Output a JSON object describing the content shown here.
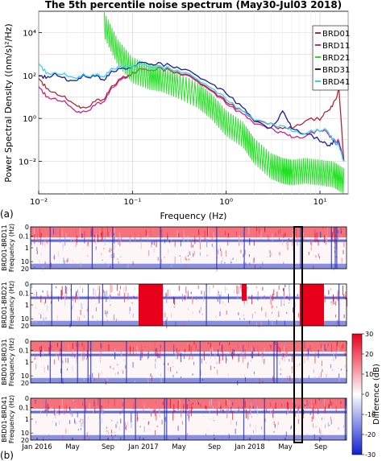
{
  "panel_a": {
    "title": "The 5th percentile noise spectrum (May30-Jul03 2018)",
    "xlabel": "Frequency (Hz)",
    "ylabel": "Power Spectral Density ((nm/s)²/Hz)",
    "panel_letter": "(a)",
    "x_tick_labels": [
      "10⁻²",
      "10⁻¹",
      "10⁰",
      "10¹"
    ],
    "y_tick_labels": [
      "10⁻²",
      "10⁰",
      "10²",
      "10⁴"
    ]
  },
  "panel_b": {
    "panel_letter": "(b)",
    "x_tick_labels": [
      "Jan 2016",
      "May",
      "Sep",
      "Jan 2017",
      "May",
      "Sep",
      "Jan 2018",
      "May",
      "Sep"
    ],
    "rows": [
      {
        "label": "BRD01-BRD11",
        "ylabel": "Frequency (Hz)"
      },
      {
        "label": "BRD01-BRD21",
        "ylabel": "Frequency (Hz)"
      },
      {
        "label": "BRD01-BRD31",
        "ylabel": "Frequency (Hz)"
      },
      {
        "label": "BRD01-BRD41",
        "ylabel": "Frequency (Hz)"
      }
    ],
    "y_tick_labels": [
      "0",
      "0.1",
      "1",
      "10",
      "20"
    ],
    "colorbar": {
      "label": "Difference (dB)",
      "tick_labels": [
        "30",
        "20",
        "10",
        "0",
        "-10",
        "-20",
        "-30"
      ]
    }
  },
  "chart_data": [
    {
      "type": "line",
      "title": "The 5th percentile noise spectrum (May30-Jul03 2018)",
      "xlabel": "Frequency (Hz)",
      "ylabel": "Power Spectral Density ((nm/s)²/Hz)",
      "x_scale": "log",
      "y_scale": "log",
      "xlim": [
        0.01,
        20
      ],
      "ylim": [
        0.0003,
        100000
      ],
      "legend_position": "top-right",
      "grid": true,
      "series": [
        {
          "name": "BRD01",
          "color": "#b0283c",
          "points": [
            [
              0.01,
              60
            ],
            [
              0.012,
              30
            ],
            [
              0.015,
              15
            ],
            [
              0.02,
              8
            ],
            [
              0.025,
              5
            ],
            [
              0.03,
              3
            ],
            [
              0.04,
              6
            ],
            [
              0.05,
              9
            ],
            [
              0.06,
              30
            ],
            [
              0.08,
              80
            ],
            [
              0.1,
              150
            ],
            [
              0.15,
              200
            ],
            [
              0.2,
              220
            ],
            [
              0.3,
              150
            ],
            [
              0.5,
              60
            ],
            [
              0.7,
              20
            ],
            [
              1,
              6
            ],
            [
              1.5,
              2
            ],
            [
              2,
              0.8
            ],
            [
              3,
              0.5
            ],
            [
              4,
              0.3
            ],
            [
              5,
              0.4
            ],
            [
              7,
              0.8
            ],
            [
              10,
              1.0
            ],
            [
              12,
              2
            ],
            [
              14,
              5
            ],
            [
              16,
              20
            ],
            [
              18,
              0.01
            ]
          ]
        },
        {
          "name": "BRD11",
          "color": "#d0208c",
          "points": [
            [
              0.01,
              25
            ],
            [
              0.012,
              12
            ],
            [
              0.015,
              8
            ],
            [
              0.02,
              5
            ],
            [
              0.025,
              2.5
            ],
            [
              0.03,
              2
            ],
            [
              0.04,
              4
            ],
            [
              0.05,
              7
            ],
            [
              0.06,
              25
            ],
            [
              0.08,
              70
            ],
            [
              0.1,
              140
            ],
            [
              0.15,
              200
            ],
            [
              0.2,
              210
            ],
            [
              0.3,
              140
            ],
            [
              0.5,
              55
            ],
            [
              0.7,
              18
            ],
            [
              1,
              5
            ],
            [
              1.5,
              1.5
            ],
            [
              2,
              0.6
            ],
            [
              3,
              0.3
            ],
            [
              4,
              0.2
            ],
            [
              5,
              0.15
            ],
            [
              7,
              0.15
            ],
            [
              10,
              0.3
            ],
            [
              12,
              0.2
            ],
            [
              14,
              0.1
            ],
            [
              16,
              0.08
            ],
            [
              18,
              0.01
            ]
          ]
        },
        {
          "name": "BRD21",
          "color": "#22e022",
          "points": [
            [
              0.05,
              40000
            ],
            [
              0.07,
              2000
            ],
            [
              0.1,
              300
            ],
            [
              0.15,
              150
            ],
            [
              0.2,
              120
            ],
            [
              0.3,
              60
            ],
            [
              0.5,
              20
            ],
            [
              0.7,
              6
            ],
            [
              1,
              1
            ],
            [
              1.5,
              0.3
            ],
            [
              2,
              0.05
            ],
            [
              3,
              0.01
            ],
            [
              4,
              0.006
            ],
            [
              5,
              0.005
            ],
            [
              7,
              0.006
            ],
            [
              10,
              0.005
            ],
            [
              14,
              0.004
            ],
            [
              18,
              0.002
            ]
          ]
        },
        {
          "name": "BRD31",
          "color": "#1c1c9c",
          "points": [
            [
              0.01,
              80
            ],
            [
              0.012,
              90
            ],
            [
              0.015,
              120
            ],
            [
              0.02,
              60
            ],
            [
              0.025,
              70
            ],
            [
              0.03,
              100
            ],
            [
              0.04,
              90
            ],
            [
              0.05,
              70
            ],
            [
              0.06,
              150
            ],
            [
              0.08,
              200
            ],
            [
              0.1,
              300
            ],
            [
              0.15,
              400
            ],
            [
              0.2,
              350
            ],
            [
              0.3,
              250
            ],
            [
              0.5,
              100
            ],
            [
              0.7,
              40
            ],
            [
              1,
              15
            ],
            [
              1.5,
              3
            ],
            [
              2,
              0.8
            ],
            [
              3,
              0.3
            ],
            [
              4,
              2
            ],
            [
              5,
              0.4
            ],
            [
              7,
              0.2
            ],
            [
              10,
              0.1
            ],
            [
              12,
              0.05
            ],
            [
              14,
              0.08
            ],
            [
              16,
              0.06
            ],
            [
              18,
              0.01
            ]
          ]
        },
        {
          "name": "BRD41",
          "color": "#33d4f0",
          "points": [
            [
              0.01,
              300
            ],
            [
              0.012,
              150
            ],
            [
              0.015,
              130
            ],
            [
              0.02,
              100
            ],
            [
              0.025,
              90
            ],
            [
              0.03,
              110
            ],
            [
              0.04,
              100
            ],
            [
              0.05,
              100
            ],
            [
              0.06,
              200
            ],
            [
              0.08,
              250
            ],
            [
              0.1,
              300
            ],
            [
              0.15,
              300
            ],
            [
              0.2,
              250
            ],
            [
              0.3,
              180
            ],
            [
              0.5,
              70
            ],
            [
              0.7,
              25
            ],
            [
              1,
              8
            ],
            [
              1.5,
              2
            ],
            [
              2,
              0.9
            ],
            [
              3,
              0.5
            ],
            [
              4,
              0.4
            ],
            [
              5,
              0.3
            ],
            [
              7,
              0.2
            ],
            [
              10,
              0.3
            ],
            [
              12,
              0.25
            ],
            [
              14,
              0.1
            ],
            [
              16,
              0.05
            ],
            [
              18,
              0.01
            ]
          ]
        }
      ]
    },
    {
      "type": "heatmap",
      "xlabel": "",
      "ylabel": "Frequency (Hz)",
      "x_ticks": [
        "Jan 2016",
        "May",
        "Sep",
        "Jan 2017",
        "May",
        "Sep",
        "Jan 2018",
        "May",
        "Sep"
      ],
      "y_ticks": [
        "0",
        "0.1",
        "1",
        "10",
        "20"
      ],
      "colorbar": {
        "label": "Difference (dB)",
        "range": [
          -30,
          30
        ],
        "colormap": "blue-white-red"
      },
      "rows": [
        "BRD01-BRD11",
        "BRD01-BRD21",
        "BRD01-BRD31",
        "BRD01-BRD41"
      ],
      "highlight_window": {
        "start": "May 2018",
        "end": "Jul 2018"
      }
    }
  ]
}
